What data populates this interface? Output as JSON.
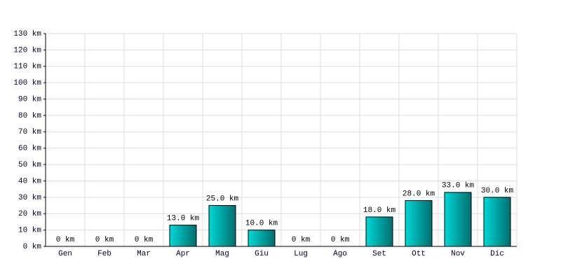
{
  "chart_data": {
    "type": "bar",
    "categories": [
      "Gen",
      "Feb",
      "Mar",
      "Apr",
      "Mag",
      "Giu",
      "Lug",
      "Ago",
      "Set",
      "Ott",
      "Nov",
      "Dic"
    ],
    "values": [
      0,
      0,
      0,
      13,
      25,
      10,
      0,
      0,
      18,
      28,
      33,
      30
    ],
    "value_labels": [
      "0 km",
      "0 km",
      "0 km",
      "13.0 km",
      "25.0 km",
      "10.0 km",
      "0 km",
      "0 km",
      "18.0 km",
      "28.0 km",
      "33.0 km",
      "30.0 km"
    ],
    "color": "#00d8d8",
    "ylim": [
      0,
      130
    ],
    "yticks": [
      {
        "value": 0,
        "label": "0 km"
      },
      {
        "value": 10,
        "label": "10 km"
      },
      {
        "value": 20,
        "label": "20 km"
      },
      {
        "value": 30,
        "label": "30 km"
      },
      {
        "value": 40,
        "label": "40 km"
      },
      {
        "value": 50,
        "label": "50 km"
      },
      {
        "value": 60,
        "label": "60 km"
      },
      {
        "value": 70,
        "label": "70 km"
      },
      {
        "value": 80,
        "label": "80 km"
      },
      {
        "value": 90,
        "label": "90 km"
      },
      {
        "value": 100,
        "label": "100 km"
      },
      {
        "value": 110,
        "label": "110 km"
      },
      {
        "value": 120,
        "label": "120 km"
      },
      {
        "value": 130,
        "label": "130 km"
      }
    ],
    "grid": true
  }
}
